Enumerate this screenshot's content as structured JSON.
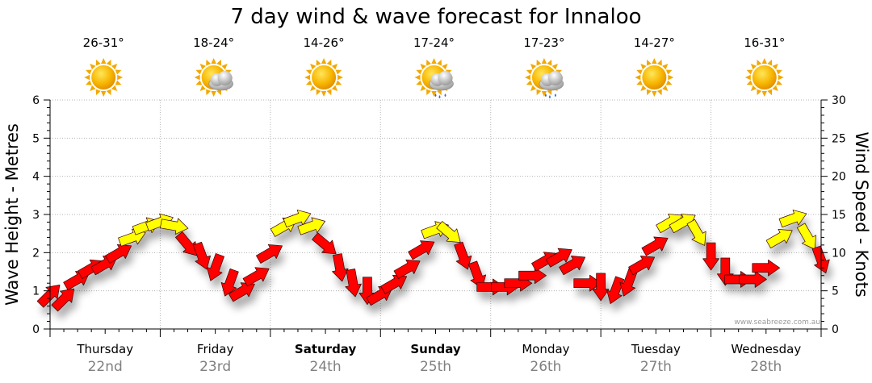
{
  "chart_data": {
    "type": "line",
    "title": "7 day wind & wave forecast for Innaloo",
    "ylabel_left": "Wave Height - Metres",
    "ylabel_right": "Wind Speed - Knots",
    "ylim_left": [
      0,
      6
    ],
    "ylim_right": [
      0,
      30
    ],
    "yticks_left": [
      "0",
      "1",
      "2",
      "3",
      "4",
      "5",
      "6"
    ],
    "yticks_right": [
      "0",
      "5",
      "10",
      "15",
      "20",
      "25",
      "30"
    ],
    "grid": true,
    "watermark": "www.seabreeze.com.au",
    "days": [
      {
        "name": "Thursday",
        "date": "22nd",
        "bold": false,
        "temp": "26-31°",
        "weather": "sunny"
      },
      {
        "name": "Friday",
        "date": "23rd",
        "bold": false,
        "temp": "18-24°",
        "weather": "partly-cloudy"
      },
      {
        "name": "Saturday",
        "date": "24th",
        "bold": true,
        "temp": "14-26°",
        "weather": "sunny"
      },
      {
        "name": "Sunday",
        "date": "25th",
        "bold": true,
        "temp": "17-24°",
        "weather": "showers"
      },
      {
        "name": "Monday",
        "date": "26th",
        "bold": false,
        "temp": "17-23°",
        "weather": "showers"
      },
      {
        "name": "Tuesday",
        "date": "27th",
        "bold": false,
        "temp": "14-27°",
        "weather": "sunny"
      },
      {
        "name": "Wednesday",
        "date": "28th",
        "bold": false,
        "temp": "16-31°",
        "weather": "sunny"
      }
    ],
    "wind_series": {
      "name": "Wind Speed (knots)",
      "x_days": [
        0.0,
        0.13,
        0.25,
        0.38,
        0.5,
        0.63,
        0.75,
        0.88,
        1.0,
        1.13,
        1.25,
        1.38,
        1.5,
        1.63,
        1.75,
        1.88,
        2.0,
        2.13,
        2.25,
        2.38,
        2.5,
        2.63,
        2.75,
        2.88,
        3.0,
        3.13,
        3.25,
        3.38,
        3.5,
        3.63,
        3.75,
        3.88,
        4.0,
        4.13,
        4.25,
        4.38,
        4.5,
        4.63,
        4.75,
        4.88,
        5.0,
        5.13,
        5.25,
        5.38,
        5.5,
        5.63,
        5.75,
        5.88,
        6.0,
        6.13,
        6.25,
        6.38,
        6.5,
        6.63,
        6.75,
        6.88,
        7.0
      ],
      "knots": [
        4.5,
        4.0,
        6.5,
        8.0,
        8.5,
        10.0,
        12.0,
        13.5,
        14.0,
        13.5,
        11.0,
        9.5,
        8.0,
        6.0,
        5.0,
        7.0,
        10.0,
        13.5,
        14.5,
        13.5,
        11.0,
        8.0,
        6.0,
        5.0,
        4.5,
        6.0,
        8.0,
        10.5,
        13.0,
        12.5,
        9.5,
        7.0,
        5.5,
        5.5,
        6.0,
        7.0,
        9.0,
        9.5,
        8.5,
        6.0,
        5.5,
        5.0,
        6.0,
        8.5,
        11.0,
        14.0,
        14.0,
        12.5,
        9.5,
        7.5,
        6.5,
        6.5,
        8.0,
        12.0,
        14.5,
        12.0,
        9.0
      ],
      "directions_deg": [
        45,
        45,
        60,
        60,
        60,
        60,
        70,
        70,
        70,
        100,
        140,
        160,
        200,
        200,
        60,
        60,
        60,
        60,
        70,
        70,
        130,
        170,
        170,
        180,
        60,
        60,
        60,
        60,
        70,
        130,
        160,
        160,
        90,
        90,
        90,
        90,
        60,
        60,
        60,
        90,
        180,
        200,
        200,
        60,
        60,
        60,
        60,
        150,
        180,
        180,
        90,
        90,
        90,
        60,
        70,
        150,
        160
      ],
      "strong_threshold_knots": 12
    },
    "wave_series": {
      "name": "Wave Height (metres)",
      "values": []
    }
  }
}
